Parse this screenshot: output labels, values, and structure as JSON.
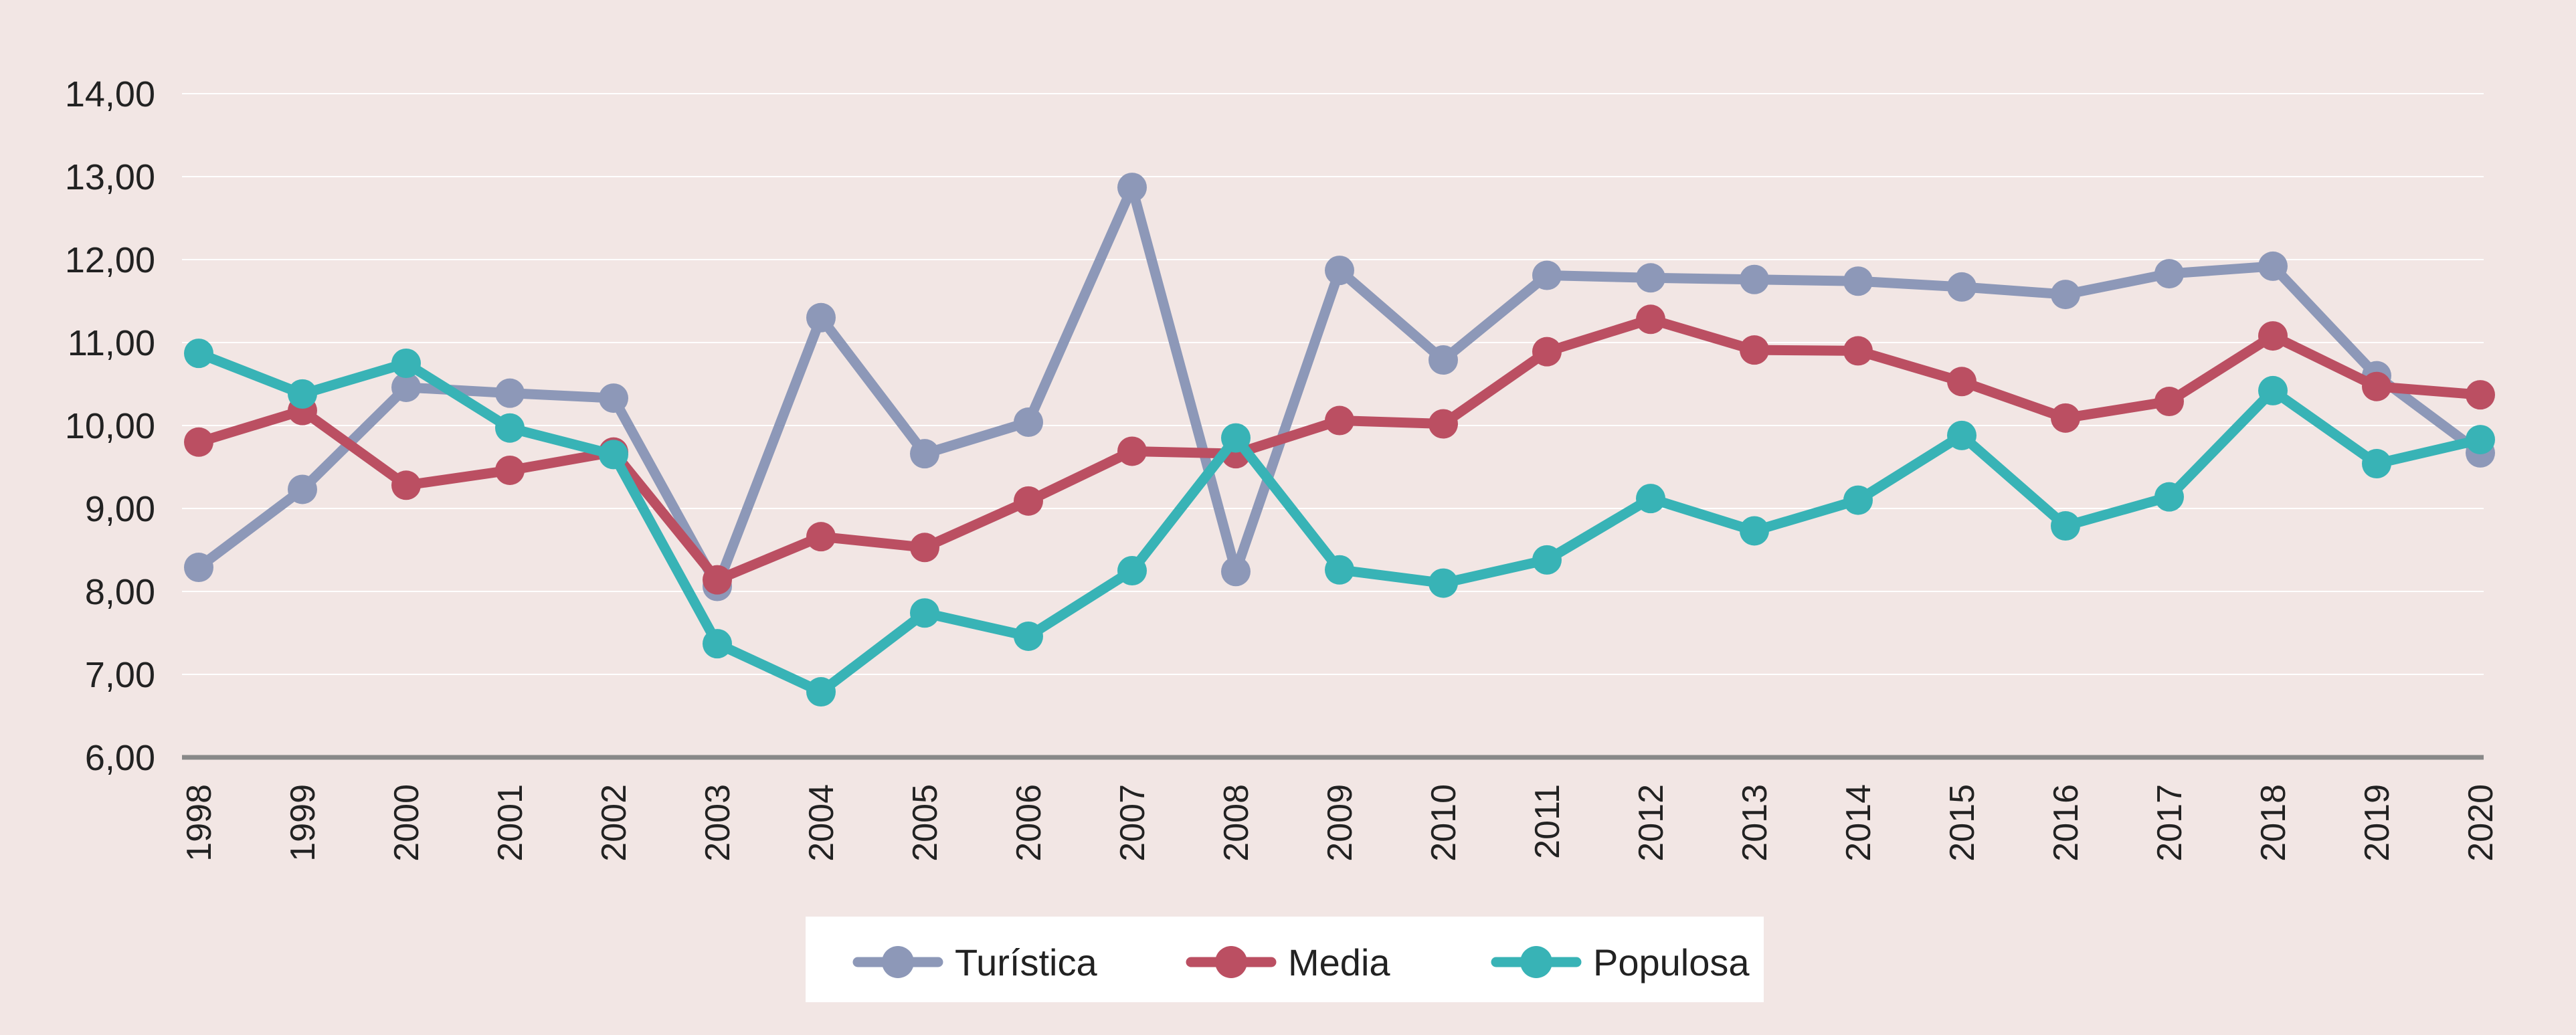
{
  "chart_data": {
    "type": "line",
    "title": "",
    "xlabel": "",
    "ylabel": "",
    "ylim": [
      6,
      14
    ],
    "yticks": [
      "6,00",
      "7,00",
      "8,00",
      "9,00",
      "10,00",
      "11,00",
      "12,00",
      "13,00",
      "14,00"
    ],
    "grid": true,
    "legend_position": "bottom-center",
    "categories": [
      "1998",
      "1999",
      "2000",
      "2001",
      "2002",
      "2003",
      "2004",
      "2005",
      "2006",
      "2007",
      "2008",
      "2009",
      "2010",
      "2011",
      "2012",
      "2013",
      "2014",
      "2015",
      "2016",
      "2017",
      "2018",
      "2019",
      "2020"
    ],
    "series": [
      {
        "name": "Turística",
        "color": "#8d98b8",
        "values": [
          8.29,
          9.23,
          10.46,
          10.39,
          10.33,
          8.06,
          11.3,
          9.66,
          10.04,
          12.87,
          8.24,
          11.87,
          10.79,
          11.81,
          11.78,
          11.76,
          11.74,
          11.67,
          11.58,
          11.83,
          11.92,
          10.6,
          9.67
        ]
      },
      {
        "name": "Media",
        "color": "#bb4f62",
        "values": [
          9.8,
          10.18,
          9.28,
          9.46,
          9.68,
          8.14,
          8.66,
          8.53,
          9.09,
          9.69,
          9.66,
          10.06,
          10.02,
          10.89,
          11.28,
          10.91,
          10.9,
          10.53,
          10.09,
          10.29,
          11.08,
          10.47,
          10.37
        ]
      },
      {
        "name": "Populosa",
        "color": "#38b3b6",
        "values": [
          10.87,
          10.38,
          10.75,
          9.97,
          9.65,
          7.37,
          6.79,
          7.74,
          7.46,
          8.25,
          9.85,
          8.26,
          8.1,
          8.38,
          9.12,
          8.73,
          9.1,
          9.88,
          8.79,
          9.14,
          10.42,
          9.54,
          9.83
        ]
      }
    ]
  },
  "colors": {
    "background": "#f2e6e4",
    "gridline": "#ffffff",
    "axis": "#888888",
    "legend_box": "#ffffff"
  }
}
